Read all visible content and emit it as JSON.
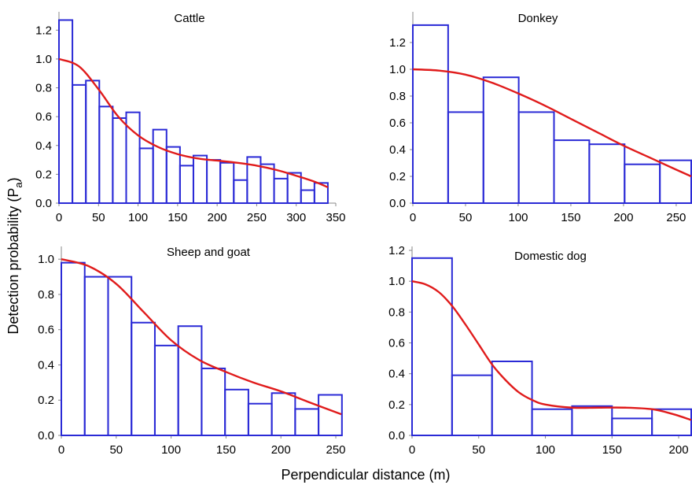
{
  "figure": {
    "ylabel_main": "Detection probability (P",
    "ylabel_sub": "a",
    "ylabel_close": ")",
    "xlabel": "Perpendicular distance (m)"
  },
  "chart_data": [
    {
      "type": "bar",
      "title": "Cattle",
      "xlim": [
        0,
        350
      ],
      "ylim": [
        0,
        1.3
      ],
      "xticks": [
        "0",
        "50",
        "100",
        "150",
        "200",
        "250",
        "300",
        "350"
      ],
      "yticks": [
        "0.0",
        "0.2",
        "0.4",
        "0.6",
        "0.8",
        "1.0",
        "1.2"
      ],
      "bar_color": "#2a2ad6",
      "bin_width": 17,
      "bins_start": 0,
      "values": [
        1.27,
        0.82,
        0.85,
        0.67,
        0.59,
        0.63,
        0.38,
        0.51,
        0.39,
        0.26,
        0.33,
        0.3,
        0.28,
        0.16,
        0.32,
        0.27,
        0.17,
        0.21,
        0.09,
        0.14
      ],
      "curve_color": "#e01b1b",
      "curve": {
        "x": [
          0,
          25,
          50,
          75,
          100,
          125,
          150,
          175,
          200,
          225,
          250,
          275,
          300,
          325,
          340
        ],
        "y": [
          1.0,
          0.95,
          0.79,
          0.6,
          0.47,
          0.39,
          0.34,
          0.31,
          0.295,
          0.28,
          0.26,
          0.23,
          0.19,
          0.145,
          0.11
        ]
      }
    },
    {
      "type": "bar",
      "title": "Donkey",
      "xlim": [
        0,
        265
      ],
      "ylim": [
        0,
        1.4
      ],
      "xticks": [
        "0",
        "50",
        "100",
        "150",
        "200",
        "250"
      ],
      "yticks": [
        "0.0",
        "0.2",
        "0.4",
        "0.6",
        "0.8",
        "1.0",
        "1.2"
      ],
      "bar_color": "#2a2ad6",
      "bin_width": 33.5,
      "bins_start": 0,
      "values": [
        1.33,
        0.68,
        0.94,
        0.68,
        0.47,
        0.44,
        0.29,
        0.32
      ],
      "curve_color": "#e01b1b",
      "curve": {
        "x": [
          0,
          25,
          50,
          75,
          100,
          125,
          150,
          175,
          200,
          225,
          250,
          268
        ],
        "y": [
          1.0,
          0.99,
          0.96,
          0.9,
          0.82,
          0.73,
          0.63,
          0.53,
          0.43,
          0.34,
          0.25,
          0.2
        ]
      }
    },
    {
      "type": "bar",
      "title": "Sheep and goat",
      "xlim": [
        0,
        255
      ],
      "ylim": [
        0,
        1.05
      ],
      "xticks": [
        "0",
        "50",
        "100",
        "150",
        "200",
        "250"
      ],
      "yticks": [
        "0.0",
        "0.2",
        "0.4",
        "0.6",
        "0.8",
        "1.0"
      ],
      "bar_color": "#2a2ad6",
      "bin_width": 21.3,
      "bins_start": 0,
      "values": [
        0.98,
        0.9,
        0.9,
        0.64,
        0.51,
        0.62,
        0.38,
        0.26,
        0.18,
        0.24,
        0.15,
        0.23
      ],
      "curve_color": "#e01b1b",
      "curve": {
        "x": [
          0,
          25,
          50,
          75,
          100,
          125,
          150,
          175,
          200,
          225,
          255
        ],
        "y": [
          1.0,
          0.96,
          0.86,
          0.7,
          0.54,
          0.43,
          0.36,
          0.3,
          0.25,
          0.19,
          0.12
        ]
      }
    },
    {
      "type": "bar",
      "title": "Domestic dog",
      "xlim": [
        0,
        210
      ],
      "ylim": [
        0,
        1.2
      ],
      "xticks": [
        "0",
        "50",
        "100",
        "150",
        "200"
      ],
      "yticks": [
        "0.0",
        "0.2",
        "0.4",
        "0.6",
        "0.8",
        "1.0",
        "1.2"
      ],
      "bar_color": "#2a2ad6",
      "bin_width": 30,
      "bins_start": 0,
      "values": [
        1.15,
        0.39,
        0.48,
        0.17,
        0.19,
        0.11,
        0.17
      ],
      "curve_color": "#e01b1b",
      "curve": {
        "x": [
          0,
          10,
          20,
          30,
          40,
          50,
          60,
          70,
          80,
          90,
          100,
          120,
          140,
          160,
          180,
          195,
          210
        ],
        "y": [
          1.0,
          0.98,
          0.93,
          0.84,
          0.72,
          0.59,
          0.46,
          0.36,
          0.28,
          0.23,
          0.2,
          0.18,
          0.18,
          0.18,
          0.17,
          0.14,
          0.1
        ]
      }
    }
  ]
}
